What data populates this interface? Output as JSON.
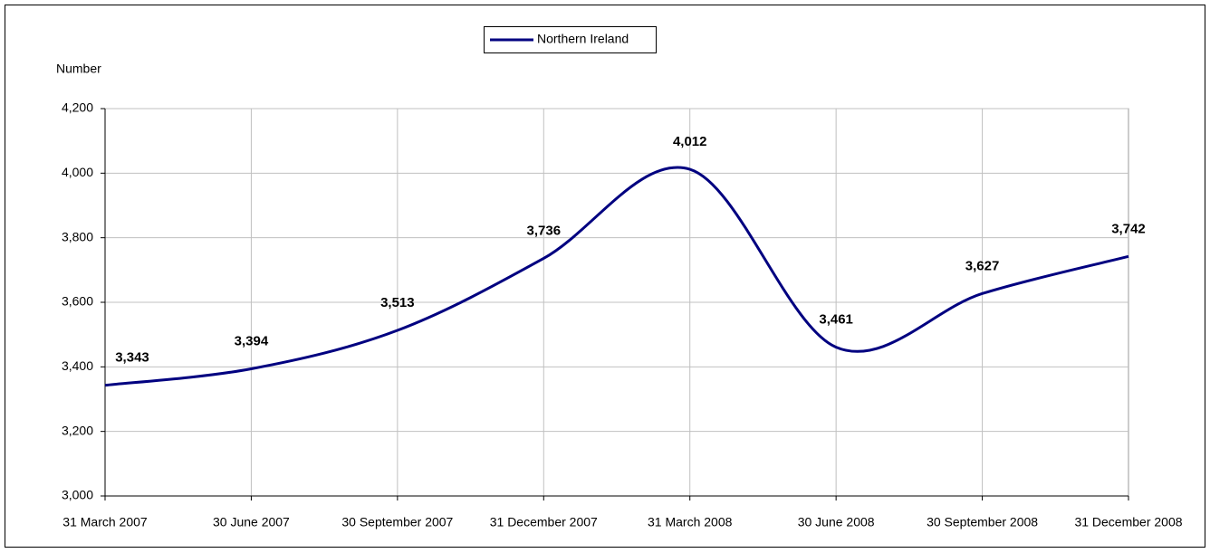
{
  "chart_data": {
    "type": "line",
    "y_label": "Number",
    "categories": [
      "31 March 2007",
      "30 June 2007",
      "30 September 2007",
      "31 December 2007",
      "31 March 2008",
      "30 June 2008",
      "30 September 2008",
      "31 December 2008"
    ],
    "series": [
      {
        "name": "Northern Ireland",
        "color": "#000080",
        "values": [
          3343,
          3394,
          3513,
          3736,
          4012,
          3461,
          3627,
          3742
        ],
        "value_labels": [
          "3,343",
          "3,394",
          "3,513",
          "3,736",
          "4,012",
          "3,461",
          "3,627",
          "3,742"
        ]
      }
    ],
    "ylim": [
      3000,
      4200
    ],
    "yticks": [
      {
        "value": 3000,
        "label": "3,000"
      },
      {
        "value": 3200,
        "label": "3,200"
      },
      {
        "value": 3400,
        "label": "3,400"
      },
      {
        "value": 3600,
        "label": "3,600"
      },
      {
        "value": 3800,
        "label": "3,800"
      },
      {
        "value": 4000,
        "label": "4,000"
      },
      {
        "value": 4200,
        "label": "4,200"
      }
    ],
    "grid": true,
    "smooth": true,
    "legend": "top"
  }
}
